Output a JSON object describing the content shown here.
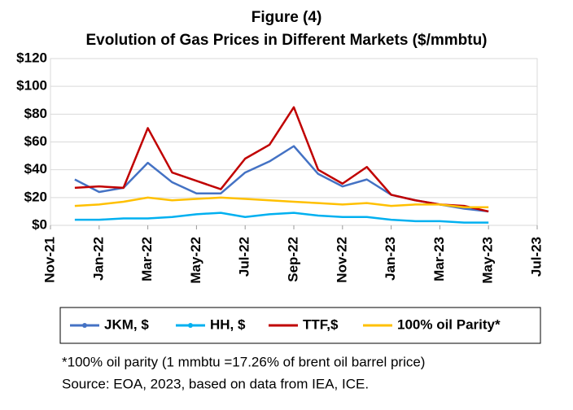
{
  "chart_data": {
    "type": "line",
    "title": "Figure (4)",
    "subtitle": "Evolution of Gas Prices in Different Markets ($/mmbtu)",
    "x": [
      "Dec-21",
      "Jan-22",
      "Feb-22",
      "Mar-22",
      "Apr-22",
      "May-22",
      "Jun-22",
      "Jul-22",
      "Aug-22",
      "Sep-22",
      "Oct-22",
      "Nov-22",
      "Dec-22",
      "Jan-23",
      "Feb-23",
      "Mar-23",
      "Apr-23",
      "May-23"
    ],
    "series": [
      {
        "name": "JKM, $",
        "color": "#4472c4",
        "values": [
          33,
          24,
          27,
          45,
          31,
          23,
          23,
          38,
          46,
          57,
          37,
          28,
          33,
          22,
          18,
          15,
          12,
          10
        ]
      },
      {
        "name": "HH, $",
        "color": "#00b0f0",
        "values": [
          4,
          4,
          5,
          5,
          6,
          8,
          9,
          6,
          8,
          9,
          7,
          6,
          6,
          4,
          3,
          3,
          2,
          2
        ]
      },
      {
        "name": "TTF,$",
        "color": "#c00000",
        "values": [
          27,
          28,
          27,
          70,
          38,
          32,
          26,
          48,
          58,
          85,
          40,
          30,
          42,
          22,
          18,
          15,
          14,
          10
        ]
      },
      {
        "name": "100% oil Parity*",
        "color": "#ffc000",
        "values": [
          14,
          15,
          17,
          20,
          18,
          19,
          20,
          19,
          18,
          17,
          16,
          15,
          16,
          14,
          15,
          15,
          13,
          13
        ]
      }
    ],
    "xlim": [
      "Nov-21",
      "Jul-23"
    ],
    "xticks": [
      "Nov-21",
      "Jan-22",
      "Mar-22",
      "May-22",
      "Jul-22",
      "Sep-22",
      "Nov-22",
      "Jan-23",
      "Mar-23",
      "May-23",
      "Jul-23"
    ],
    "ylim": [
      0,
      120
    ],
    "yticks": [
      {
        "value": 0,
        "label": "$0"
      },
      {
        "value": 20,
        "label": "$20"
      },
      {
        "value": 40,
        "label": "$40"
      },
      {
        "value": 60,
        "label": "$60"
      },
      {
        "value": 80,
        "label": "$80"
      },
      {
        "value": 100,
        "label": "$100"
      },
      {
        "value": 120,
        "label": "$120"
      }
    ],
    "grid": true,
    "legend": "bottom",
    "notes": [
      "*100% oil parity (1 mmbtu =17.26% of brent oil barrel price)",
      "Source: EOA, 2023, based on data from IEA, ICE."
    ]
  }
}
